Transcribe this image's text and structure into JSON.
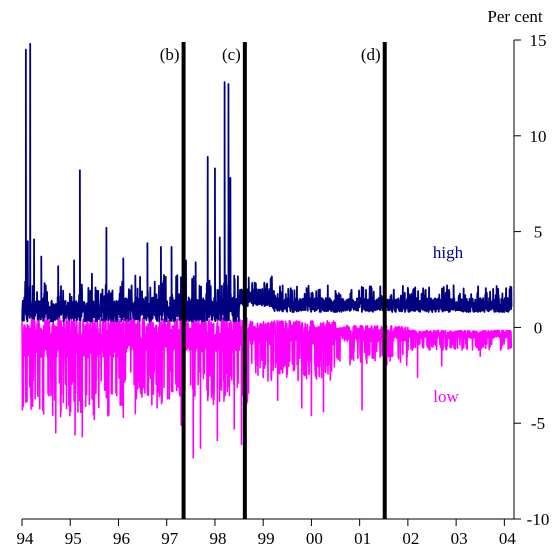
{
  "chart_data": {
    "type": "line",
    "title": "",
    "xlabel": "",
    "ylabel": "Per cent",
    "y_axis_position": "right",
    "ylim": [
      -10,
      15
    ],
    "y_ticks": [
      15,
      10,
      5,
      0,
      -5,
      -10
    ],
    "y_tick_labels": [
      "15",
      "10",
      "5",
      "0",
      "-5",
      "-10"
    ],
    "xlim": [
      1994,
      2004.2
    ],
    "x_ticks": [
      1994,
      1995,
      1996,
      1997,
      1998,
      1999,
      2000,
      2001,
      2002,
      2003,
      2004
    ],
    "x_tick_labels": [
      "94",
      "95",
      "96",
      "97",
      "98",
      "99",
      "00",
      "01",
      "02",
      "03",
      "04"
    ],
    "grid": false,
    "legend": "inline labels",
    "vertical_markers": [
      {
        "label": "(b)",
        "x": 1997.35
      },
      {
        "label": "(c)",
        "x": 1998.62
      },
      {
        "label": "(d)",
        "x": 2001.52
      }
    ],
    "series": [
      {
        "name": "high",
        "color": "#000080",
        "segments": [
          {
            "x": [
              1994.0,
              1996.0
            ],
            "base": 0.9,
            "noise": 0.6
          },
          {
            "x": [
              1996.0,
              1998.5
            ],
            "base": 1.0,
            "noise": 0.7
          },
          {
            "x": [
              1998.5,
              1999.2
            ],
            "base": 1.6,
            "noise": 0.5
          },
          {
            "x": [
              1999.2,
              2004.15
            ],
            "base": 1.2,
            "noise": 0.4
          }
        ],
        "spikes": [
          {
            "x": 1994.08,
            "y": 14.5
          },
          {
            "x": 1994.17,
            "y": 14.8
          },
          {
            "x": 1994.12,
            "y": 4.5
          },
          {
            "x": 1994.25,
            "y": 4.6
          },
          {
            "x": 1994.4,
            "y": 3.7
          },
          {
            "x": 1994.75,
            "y": 3.2
          },
          {
            "x": 1995.08,
            "y": 3.5
          },
          {
            "x": 1995.2,
            "y": 8.2
          },
          {
            "x": 1995.45,
            "y": 2.8
          },
          {
            "x": 1995.75,
            "y": 5.2
          },
          {
            "x": 1996.1,
            "y": 3.6
          },
          {
            "x": 1996.35,
            "y": 2.7
          },
          {
            "x": 1996.6,
            "y": 4.4
          },
          {
            "x": 1996.88,
            "y": 4.2
          },
          {
            "x": 1997.1,
            "y": 4.2
          },
          {
            "x": 1997.4,
            "y": 3.5
          },
          {
            "x": 1997.6,
            "y": 3.4
          },
          {
            "x": 1997.85,
            "y": 8.9
          },
          {
            "x": 1998.0,
            "y": 8.3
          },
          {
            "x": 1998.1,
            "y": 4.7
          },
          {
            "x": 1998.2,
            "y": 12.8
          },
          {
            "x": 1998.28,
            "y": 12.7
          },
          {
            "x": 1998.32,
            "y": 7.8
          },
          {
            "x": 1998.4,
            "y": 2.7
          },
          {
            "x": 1998.7,
            "y": 2.6
          }
        ],
        "label": "high"
      },
      {
        "name": "low",
        "color": "#ff00ff",
        "segments": [
          {
            "x": [
              1994.0,
              1996.0
            ],
            "base": -1.2,
            "noise": 2.5
          },
          {
            "x": [
              1996.0,
              1998.7
            ],
            "base": -1.0,
            "noise": 2.2
          },
          {
            "x": [
              1998.7,
              2000.5
            ],
            "base": -0.7,
            "noise": 1.5
          },
          {
            "x": [
              2000.5,
              2002.0
            ],
            "base": -0.6,
            "noise": 1.0
          },
          {
            "x": [
              2002.0,
              2004.15
            ],
            "base": -0.5,
            "noise": 0.5
          }
        ],
        "dips": [
          {
            "x": 1994.7,
            "y": -5.5
          },
          {
            "x": 1995.1,
            "y": -5.6
          },
          {
            "x": 1995.25,
            "y": -5.7
          },
          {
            "x": 1995.5,
            "y": -4.8
          },
          {
            "x": 1996.1,
            "y": -4.7
          },
          {
            "x": 1996.35,
            "y": -4.5
          },
          {
            "x": 1996.8,
            "y": -4.2
          },
          {
            "x": 1997.3,
            "y": -5.1
          },
          {
            "x": 1997.55,
            "y": -6.8
          },
          {
            "x": 1997.7,
            "y": -6.3
          },
          {
            "x": 1998.05,
            "y": -5.9
          },
          {
            "x": 1998.4,
            "y": -5.3
          },
          {
            "x": 1998.55,
            "y": -6.1
          },
          {
            "x": 1999.3,
            "y": -3.8
          },
          {
            "x": 1999.8,
            "y": -4.2
          },
          {
            "x": 2000.0,
            "y": -4.6
          },
          {
            "x": 2000.25,
            "y": -4.4
          },
          {
            "x": 2001.05,
            "y": -4.3
          },
          {
            "x": 2001.5,
            "y": -3.7
          },
          {
            "x": 2002.2,
            "y": -2.6
          },
          {
            "x": 2002.7,
            "y": -2.0
          },
          {
            "x": 2003.5,
            "y": -1.5
          }
        ],
        "label": "low"
      }
    ]
  }
}
